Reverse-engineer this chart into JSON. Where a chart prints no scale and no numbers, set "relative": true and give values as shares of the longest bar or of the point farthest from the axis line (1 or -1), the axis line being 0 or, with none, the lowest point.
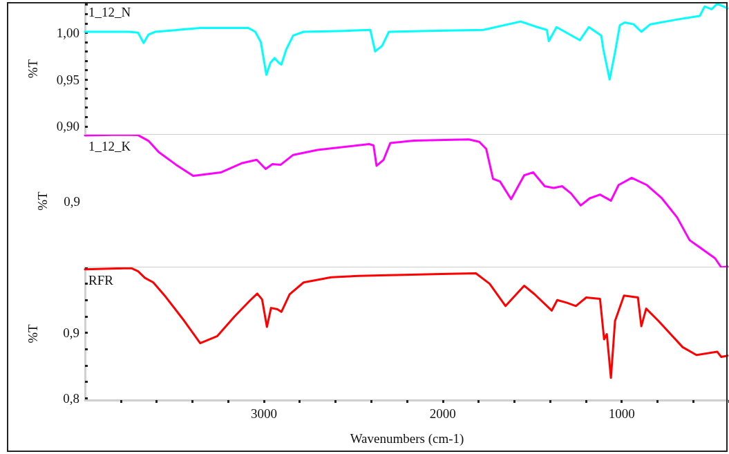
{
  "chart_data": [
    {
      "type": "line",
      "ylabel": "%T",
      "xlim": [
        4000,
        400
      ],
      "ylim": [
        0.891,
        1.032
      ],
      "yticks": [
        {
          "value": 0.9,
          "label": "0,90"
        },
        {
          "value": 0.91,
          "label": null
        },
        {
          "value": 0.92,
          "label": null
        },
        {
          "value": 0.93,
          "label": null
        },
        {
          "value": 0.94,
          "label": null
        },
        {
          "value": 0.95,
          "label": "0,95"
        },
        {
          "value": 0.96,
          "label": null
        },
        {
          "value": 0.97,
          "label": null
        },
        {
          "value": 0.98,
          "label": null
        },
        {
          "value": 0.99,
          "label": null
        },
        {
          "value": 1.0,
          "label": "1,00"
        },
        {
          "value": 1.01,
          "label": null
        },
        {
          "value": 1.02,
          "label": null
        },
        {
          "value": 1.03,
          "label": null
        }
      ],
      "tick_labels": "y",
      "series": [
        {
          "name": "1_12_N",
          "color": "#00ffff",
          "x": [
            4000,
            3757,
            3703,
            3672,
            3645,
            3607,
            3356,
            3086,
            3048,
            3017,
            2986,
            2963,
            2940,
            2917,
            2902,
            2875,
            2836,
            2778,
            2547,
            2405,
            2378,
            2339,
            2301,
            2077,
            1773,
            1565,
            1472,
            1418,
            1407,
            1364,
            1233,
            1183,
            1114,
            1102,
            1067,
            1037,
            1010,
            983,
            933,
            890,
            840,
            694,
            563,
            536,
            497,
            466,
            408
          ],
          "values": [
            1.001,
            1.001,
            1.0,
            0.989,
            0.998,
            1.001,
            1.005,
            1.005,
            1.001,
            0.99,
            0.955,
            0.968,
            0.973,
            0.968,
            0.966,
            0.982,
            0.997,
            1.001,
            1.002,
            1.003,
            0.98,
            0.986,
            1.001,
            1.002,
            1.003,
            1.012,
            1.006,
            1.003,
            0.991,
            1.006,
            0.992,
            1.006,
            0.997,
            0.982,
            0.95,
            0.979,
            1.008,
            1.011,
            1.009,
            1.001,
            1.009,
            1.014,
            1.018,
            1.028,
            1.025,
            1.031,
            1.026
          ]
        }
      ]
    },
    {
      "type": "line",
      "ylabel": "%T",
      "relative": true,
      "xlim": [
        4000,
        400
      ],
      "tick_labels": false,
      "annotations": [
        "0,9"
      ],
      "series": [
        {
          "name": "1_12_K",
          "color": "#ff00ff",
          "x": [
            4000,
            3800,
            3703,
            3645,
            3588,
            3491,
            3395,
            3241,
            3125,
            3040,
            2990,
            2952,
            2906,
            2836,
            2701,
            2412,
            2387,
            2370,
            2331,
            2293,
            2162,
            1854,
            1796,
            1757,
            1719,
            1680,
            1618,
            1545,
            1495,
            1430,
            1380,
            1333,
            1283,
            1229,
            1179,
            1121,
            1060,
            1017,
            944,
            859,
            775,
            690,
            620,
            543,
            478,
            443,
            408
          ],
          "values": [
            0.995,
            1.0,
            0.997,
            0.954,
            0.87,
            0.774,
            0.69,
            0.716,
            0.785,
            0.811,
            0.742,
            0.779,
            0.774,
            0.848,
            0.885,
            0.93,
            0.92,
            0.766,
            0.811,
            0.938,
            0.956,
            0.965,
            0.947,
            0.893,
            0.668,
            0.648,
            0.514,
            0.694,
            0.717,
            0.612,
            0.599,
            0.612,
            0.558,
            0.467,
            0.521,
            0.549,
            0.503,
            0.621,
            0.675,
            0.621,
            0.521,
            0.377,
            0.205,
            0.132,
            0.069,
            0,
            0.006
          ]
        }
      ]
    },
    {
      "type": "line",
      "ylabel": "%T",
      "xlabel": "Wavenumbers (cm-1)",
      "xlim": [
        4000,
        400
      ],
      "ylim": [
        0.797,
        1.0
      ],
      "xticks": [
        {
          "value": 3800,
          "label": null
        },
        {
          "value": 3600,
          "label": null
        },
        {
          "value": 3400,
          "label": null
        },
        {
          "value": 3200,
          "label": null
        },
        3000,
        {
          "value": 2800,
          "label": null
        },
        {
          "value": 2600,
          "label": null
        },
        {
          "value": 2400,
          "label": null
        },
        {
          "value": 2200,
          "label": null
        },
        2000,
        {
          "value": 1800,
          "label": null
        },
        {
          "value": 1600,
          "label": null
        },
        {
          "value": 1400,
          "label": null
        },
        {
          "value": 1200,
          "label": null
        },
        1000,
        {
          "value": 800,
          "label": null
        },
        {
          "value": 600,
          "label": null
        },
        {
          "value": 400,
          "label": null
        }
      ],
      "yticks": [
        {
          "value": 0.8,
          "label": "0,8"
        },
        {
          "value": 0.825,
          "label": null
        },
        {
          "value": 0.85,
          "label": null
        },
        {
          "value": 0.875,
          "label": null
        },
        {
          "value": 0.9,
          "label": "0,9"
        },
        {
          "value": 0.925,
          "label": null
        },
        {
          "value": 0.95,
          "label": null
        },
        {
          "value": 0.975,
          "label": null
        },
        {
          "value": 1.0,
          "label": null
        }
      ],
      "series": [
        {
          "name": "RFR",
          "color": "#ff0000",
          "x": [
            4000,
            3742,
            3703,
            3665,
            3618,
            3549,
            3453,
            3356,
            3260,
            3164,
            3079,
            3037,
            3010,
            2983,
            2960,
            2925,
            2902,
            2856,
            2778,
            2624,
            2470,
            2008,
            1815,
            1738,
            1649,
            1545,
            1487,
            1391,
            1360,
            1306,
            1256,
            1198,
            1121,
            1098,
            1083,
            1060,
            1037,
            987,
            909,
            890,
            863,
            794,
            659,
            582,
            466,
            443,
            408
          ],
          "values": [
            0.997,
            0.999,
            0.994,
            0.984,
            0.977,
            0.955,
            0.921,
            0.884,
            0.895,
            0.925,
            0.949,
            0.96,
            0.951,
            0.909,
            0.938,
            0.936,
            0.932,
            0.959,
            0.977,
            0.985,
            0.987,
            0.99,
            0.991,
            0.975,
            0.941,
            0.972,
            0.959,
            0.934,
            0.95,
            0.946,
            0.941,
            0.954,
            0.952,
            0.89,
            0.898,
            0.831,
            0.918,
            0.957,
            0.954,
            0.91,
            0.937,
            0.918,
            0.878,
            0.866,
            0.871,
            0.863,
            0.865
          ]
        }
      ]
    }
  ]
}
